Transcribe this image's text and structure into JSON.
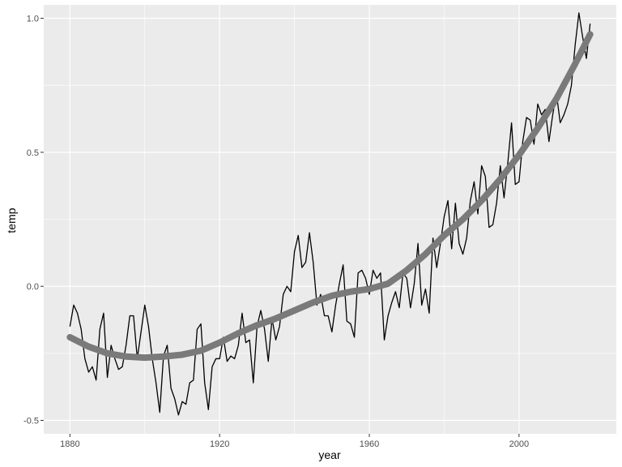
{
  "chart_data": {
    "type": "line",
    "title": "",
    "xlabel": "year",
    "ylabel": "temp",
    "xlim": [
      1873,
      2026
    ],
    "ylim": [
      -0.55,
      1.05
    ],
    "x_ticks": [
      {
        "value": 1880,
        "label": "1880"
      },
      {
        "value": 1920,
        "label": "1920"
      },
      {
        "value": 1960,
        "label": "1960"
      },
      {
        "value": 2000,
        "label": "2000"
      }
    ],
    "y_ticks": [
      {
        "value": -0.5,
        "label": "-0.5"
      },
      {
        "value": 0.0,
        "label": "0.0"
      },
      {
        "value": 0.5,
        "label": "0.5"
      },
      {
        "value": 1.0,
        "label": "1.0"
      }
    ],
    "grid": true,
    "colors": {
      "panel": "#ebebeb",
      "grid": "#ffffff",
      "line": "#000000",
      "smooth": "#7a7a7a"
    },
    "series": [
      {
        "kind": "line",
        "x": [
          1880,
          1881,
          1882,
          1883,
          1884,
          1885,
          1886,
          1887,
          1888,
          1889,
          1890,
          1891,
          1892,
          1893,
          1894,
          1895,
          1896,
          1897,
          1898,
          1899,
          1900,
          1901,
          1902,
          1903,
          1904,
          1905,
          1906,
          1907,
          1908,
          1909,
          1910,
          1911,
          1912,
          1913,
          1914,
          1915,
          1916,
          1917,
          1918,
          1919,
          1920,
          1921,
          1922,
          1923,
          1924,
          1925,
          1926,
          1927,
          1928,
          1929,
          1930,
          1931,
          1932,
          1933,
          1934,
          1935,
          1936,
          1937,
          1938,
          1939,
          1940,
          1941,
          1942,
          1943,
          1944,
          1945,
          1946,
          1947,
          1948,
          1949,
          1950,
          1951,
          1952,
          1953,
          1954,
          1955,
          1956,
          1957,
          1958,
          1959,
          1960,
          1961,
          1962,
          1963,
          1964,
          1965,
          1966,
          1967,
          1968,
          1969,
          1970,
          1971,
          1972,
          1973,
          1974,
          1975,
          1976,
          1977,
          1978,
          1979,
          1980,
          1981,
          1982,
          1983,
          1984,
          1985,
          1986,
          1987,
          1988,
          1989,
          1990,
          1991,
          1992,
          1993,
          1994,
          1995,
          1996,
          1997,
          1998,
          1999,
          2000,
          2001,
          2002,
          2003,
          2004,
          2005,
          2006,
          2007,
          2008,
          2009,
          2010,
          2011,
          2012,
          2013,
          2014,
          2015,
          2016,
          2017,
          2018,
          2019
        ],
        "y": [
          -0.15,
          -0.07,
          -0.1,
          -0.16,
          -0.27,
          -0.32,
          -0.3,
          -0.35,
          -0.16,
          -0.1,
          -0.34,
          -0.22,
          -0.27,
          -0.31,
          -0.3,
          -0.22,
          -0.11,
          -0.11,
          -0.27,
          -0.17,
          -0.07,
          -0.15,
          -0.27,
          -0.36,
          -0.47,
          -0.26,
          -0.22,
          -0.38,
          -0.42,
          -0.48,
          -0.43,
          -0.44,
          -0.36,
          -0.35,
          -0.16,
          -0.14,
          -0.36,
          -0.46,
          -0.3,
          -0.27,
          -0.27,
          -0.19,
          -0.28,
          -0.26,
          -0.27,
          -0.22,
          -0.1,
          -0.21,
          -0.2,
          -0.36,
          -0.15,
          -0.09,
          -0.16,
          -0.28,
          -0.12,
          -0.2,
          -0.15,
          -0.03,
          0.0,
          -0.02,
          0.13,
          0.19,
          0.07,
          0.09,
          0.2,
          0.09,
          -0.07,
          -0.03,
          -0.11,
          -0.11,
          -0.17,
          -0.07,
          0.01,
          0.08,
          -0.13,
          -0.14,
          -0.19,
          0.05,
          0.06,
          0.03,
          -0.03,
          0.06,
          0.03,
          0.05,
          -0.2,
          -0.11,
          -0.06,
          -0.02,
          -0.08,
          0.05,
          0.03,
          -0.08,
          0.01,
          0.16,
          -0.07,
          -0.01,
          -0.1,
          0.18,
          0.07,
          0.16,
          0.26,
          0.32,
          0.14,
          0.31,
          0.16,
          0.12,
          0.18,
          0.32,
          0.39,
          0.27,
          0.45,
          0.41,
          0.22,
          0.23,
          0.31,
          0.45,
          0.33,
          0.46,
          0.61,
          0.38,
          0.39,
          0.54,
          0.63,
          0.62,
          0.53,
          0.68,
          0.64,
          0.66,
          0.54,
          0.64,
          0.72,
          0.61,
          0.64,
          0.68,
          0.75,
          0.9,
          1.02,
          0.93,
          0.85,
          0.98
        ]
      },
      {
        "kind": "smooth",
        "x": [
          1880,
          1885,
          1890,
          1895,
          1900,
          1905,
          1910,
          1915,
          1920,
          1925,
          1930,
          1935,
          1940,
          1945,
          1950,
          1955,
          1960,
          1965,
          1970,
          1975,
          1980,
          1985,
          1990,
          1995,
          2000,
          2005,
          2010,
          2015,
          2019
        ],
        "y": [
          -0.19,
          -0.225,
          -0.25,
          -0.262,
          -0.266,
          -0.262,
          -0.255,
          -0.24,
          -0.21,
          -0.175,
          -0.145,
          -0.12,
          -0.09,
          -0.06,
          -0.035,
          -0.02,
          -0.01,
          0.01,
          0.06,
          0.12,
          0.19,
          0.25,
          0.32,
          0.4,
          0.49,
          0.59,
          0.7,
          0.83,
          0.94
        ]
      }
    ]
  }
}
